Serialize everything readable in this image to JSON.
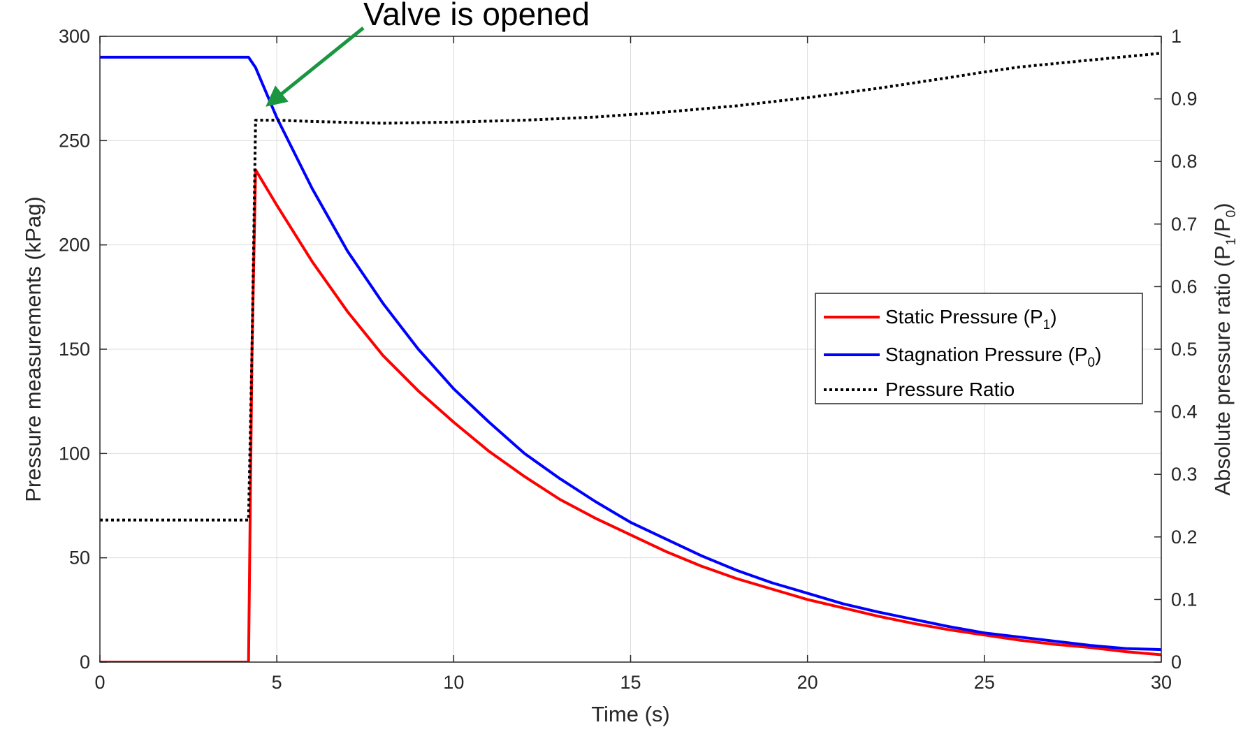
{
  "chart_data": {
    "type": "line",
    "x_label": "Time (s)",
    "y_left_label": "Pressure measurements (kPag)",
    "y_right_label": {
      "main": "Absolute pressure ratio (P",
      "sub1": "1",
      "slash": "/P",
      "sub2": "0",
      "close": ")"
    },
    "xlim": [
      0,
      30
    ],
    "ylim_left": [
      0,
      300
    ],
    "ylim_right": [
      0,
      1
    ],
    "x_ticks": [
      0,
      5,
      10,
      15,
      20,
      25,
      30
    ],
    "y_left_ticks": [
      0,
      50,
      100,
      150,
      200,
      250,
      300
    ],
    "y_right_ticks": [
      0,
      0.1,
      0.2,
      0.3,
      0.4,
      0.5,
      0.6,
      0.7,
      0.8,
      0.9,
      1
    ],
    "grid": true,
    "legend_position": "right-middle",
    "annotation": {
      "text": "Valve is opened",
      "arrow_to": [
        4.6,
        265
      ],
      "color": "#1a9641"
    },
    "series": [
      {
        "name": "Static Pressure (P",
        "name_sub": "1",
        "name_close": ")",
        "axis": "left",
        "color": "#ff0000",
        "line_style": "solid",
        "x": [
          0,
          4.2,
          4.3,
          4.4,
          5,
          6,
          7,
          8,
          9,
          10,
          11,
          12,
          13,
          14,
          15,
          16,
          17,
          18,
          19,
          20,
          21,
          22,
          23,
          24,
          25,
          26,
          27,
          28,
          29,
          30
        ],
        "y": [
          0,
          0,
          150,
          236,
          219,
          192,
          168,
          147,
          130,
          115,
          101,
          89,
          78,
          69,
          61,
          53,
          46,
          40,
          35,
          30,
          26,
          22,
          18.5,
          15.5,
          13,
          10.5,
          8.5,
          7,
          5,
          3.5
        ]
      },
      {
        "name": "Stagnation Pressure (P",
        "name_sub": "0",
        "name_close": ")",
        "axis": "left",
        "color": "#0000ff",
        "line_style": "solid",
        "x": [
          0,
          4.2,
          4.4,
          5,
          6,
          7,
          8,
          9,
          10,
          11,
          12,
          13,
          14,
          15,
          16,
          17,
          18,
          19,
          20,
          21,
          22,
          23,
          24,
          25,
          26,
          27,
          28,
          29,
          30
        ],
        "y": [
          290,
          290,
          285,
          261,
          227,
          197,
          172,
          150,
          131,
          115,
          100,
          88,
          77,
          67,
          59,
          51,
          44,
          38,
          33,
          28,
          24,
          20.5,
          17,
          14,
          12,
          10,
          8,
          6.5,
          6
        ]
      },
      {
        "name": "Pressure Ratio",
        "axis": "right",
        "color": "#000000",
        "line_style": "dotted",
        "x": [
          0,
          4.2,
          4.3,
          4.4,
          5,
          6,
          8,
          10,
          12,
          14,
          16,
          18,
          20,
          22,
          24,
          25,
          26,
          28,
          30
        ],
        "y": [
          0.227,
          0.227,
          0.5,
          0.866,
          0.866,
          0.864,
          0.861,
          0.863,
          0.866,
          0.871,
          0.879,
          0.889,
          0.902,
          0.917,
          0.934,
          0.943,
          0.951,
          0.962,
          0.973
        ]
      }
    ]
  }
}
